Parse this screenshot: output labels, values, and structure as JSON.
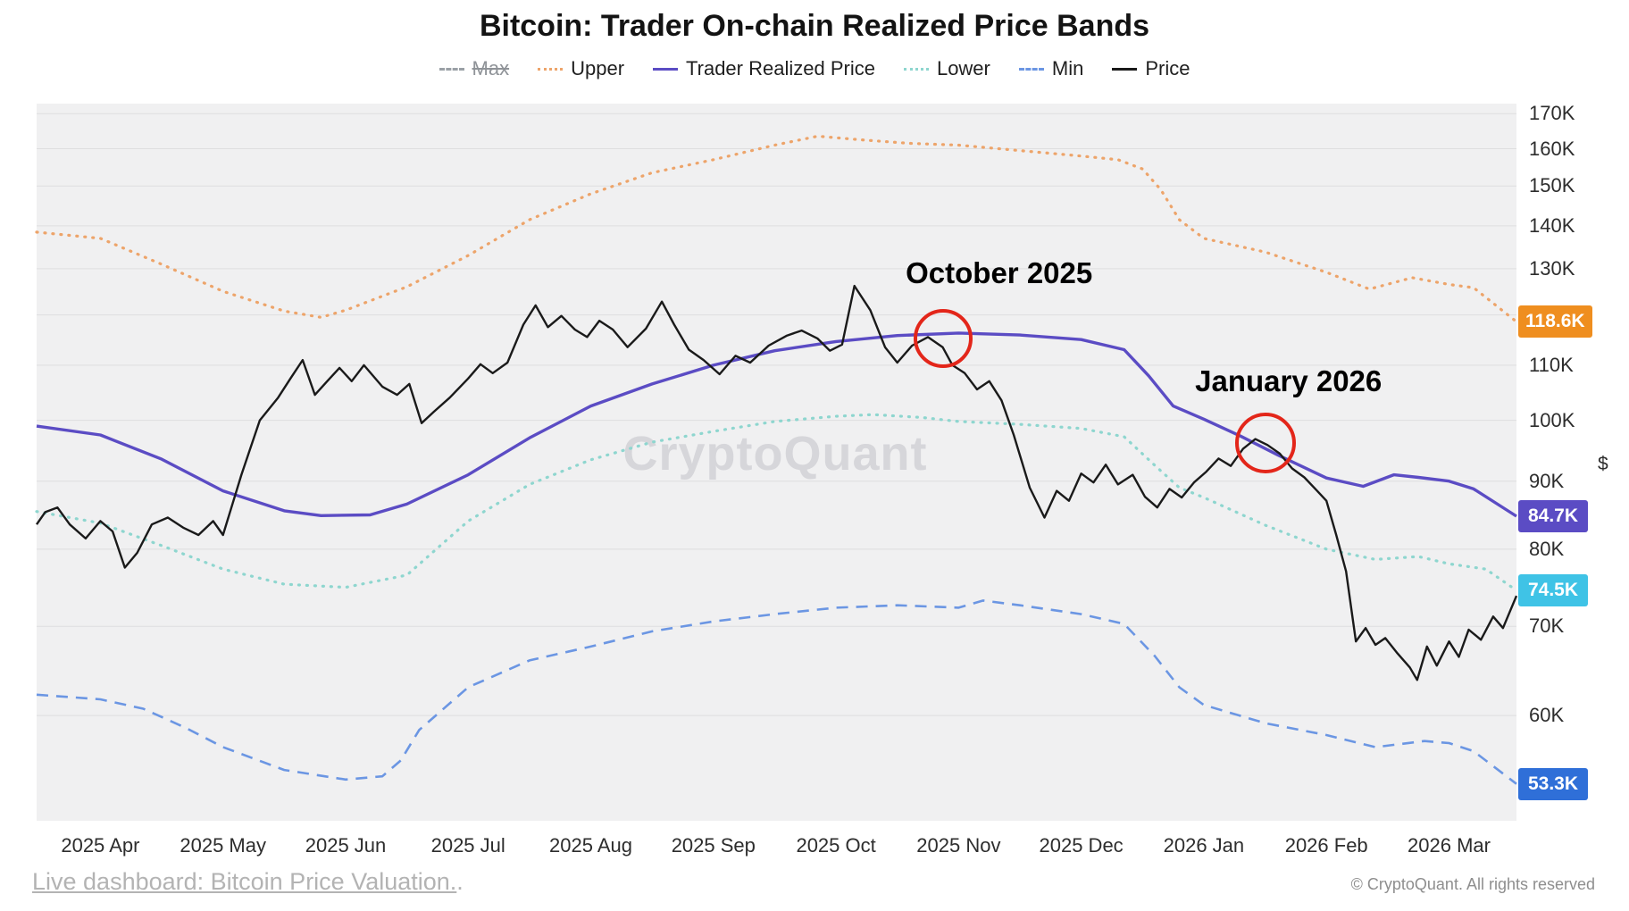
{
  "title": "Bitcoin: Trader On-chain Realized Price Bands",
  "watermark": "CryptoQuant",
  "legend": {
    "items": [
      {
        "label": "Max",
        "color": "#9aa0a6",
        "style": "dashed",
        "disabled": true
      },
      {
        "label": "Upper",
        "color": "#eda46a",
        "style": "dotted",
        "disabled": false
      },
      {
        "label": "Trader Realized Price",
        "color": "#5b4cc4",
        "style": "solid",
        "disabled": false
      },
      {
        "label": "Lower",
        "color": "#8ed6cf",
        "style": "dotted",
        "disabled": false
      },
      {
        "label": "Min",
        "color": "#6b96e3",
        "style": "dashed",
        "disabled": false
      },
      {
        "label": "Price",
        "color": "#1a1a1a",
        "style": "solid",
        "disabled": false
      }
    ]
  },
  "chart_data": {
    "type": "line",
    "title": "Bitcoin: Trader On-chain Realized Price Bands",
    "x_unit": "months (0 = 2025 Apr tick)",
    "y_unit": "USD thousands",
    "y_scale": "log",
    "grid": true,
    "legend_position": "top",
    "x_range": [
      -0.52,
      11.55
    ],
    "y_range": [
      50,
      173
    ],
    "y_axis_unit_label": "$",
    "x_ticks": [
      {
        "m": 0,
        "label": "2025 Apr"
      },
      {
        "m": 1,
        "label": "2025 May"
      },
      {
        "m": 2,
        "label": "2025 Jun"
      },
      {
        "m": 3,
        "label": "2025 Jul"
      },
      {
        "m": 4,
        "label": "2025 Aug"
      },
      {
        "m": 5,
        "label": "2025 Sep"
      },
      {
        "m": 6,
        "label": "2025 Oct"
      },
      {
        "m": 7,
        "label": "2025 Nov"
      },
      {
        "m": 8,
        "label": "2025 Dec"
      },
      {
        "m": 9,
        "label": "2026 Jan"
      },
      {
        "m": 10,
        "label": "2026 Feb"
      },
      {
        "m": 11,
        "label": "2026 Mar"
      }
    ],
    "y_ticks": [
      {
        "v": 170,
        "label": "170K"
      },
      {
        "v": 160,
        "label": "160K"
      },
      {
        "v": 150,
        "label": "150K"
      },
      {
        "v": 140,
        "label": "140K"
      },
      {
        "v": 130,
        "label": "130K"
      },
      {
        "v": 110,
        "label": "110K"
      },
      {
        "v": 100,
        "label": "100K"
      },
      {
        "v": 90,
        "label": "90K"
      },
      {
        "v": 80,
        "label": "80K"
      },
      {
        "v": 70,
        "label": "70K"
      },
      {
        "v": 60,
        "label": "60K"
      }
    ],
    "gridline_values": [
      170,
      160,
      150,
      140,
      130,
      120,
      110,
      100,
      90,
      80,
      70,
      60
    ],
    "series": [
      {
        "name": "Upper",
        "color": "#eda46a",
        "style": "dotted",
        "width": 3.2,
        "x": [
          -0.52,
          0,
          0.5,
          1,
          1.5,
          1.8,
          2,
          2.5,
          3,
          3.5,
          4,
          4.5,
          5,
          5.5,
          5.85,
          6.2,
          6.6,
          7,
          7.5,
          8,
          8.3,
          8.5,
          8.65,
          8.8,
          9,
          9.5,
          10,
          10.35,
          10.7,
          11,
          11.2,
          11.55
        ],
        "values": [
          138.5,
          137,
          131,
          125,
          120.8,
          119.5,
          121,
          126,
          133,
          141.5,
          148,
          153.5,
          157,
          161,
          163.5,
          162.5,
          161.5,
          161,
          159.5,
          158,
          157,
          154.5,
          149,
          141.5,
          137,
          133.8,
          129.2,
          125.5,
          128,
          126.5,
          125.8,
          118.6
        ]
      },
      {
        "name": "Trader Realized Price",
        "color": "#5b4cc4",
        "style": "solid",
        "width": 3.4,
        "x": [
          -0.52,
          0,
          0.5,
          1,
          1.5,
          1.8,
          2.2,
          2.5,
          3,
          3.5,
          4,
          4.5,
          5,
          5.5,
          6,
          6.5,
          7,
          7.5,
          8,
          8.35,
          8.55,
          8.75,
          9,
          9.3,
          9.6,
          10,
          10.3,
          10.55,
          10.75,
          11,
          11.2,
          11.55
        ],
        "values": [
          99,
          97.5,
          93.5,
          88.5,
          85.5,
          84.8,
          84.9,
          86.5,
          91,
          97,
          102.5,
          106.5,
          110,
          112.8,
          114.6,
          115.8,
          116.3,
          115.9,
          115,
          113,
          108,
          102.5,
          100.2,
          97.3,
          94.2,
          90.5,
          89.2,
          91,
          90.6,
          90,
          88.8,
          84.7
        ]
      },
      {
        "name": "Lower",
        "color": "#8ed6cf",
        "style": "dotted",
        "width": 3.2,
        "x": [
          -0.52,
          0,
          0.5,
          1,
          1.5,
          2,
          2.5,
          3,
          3.5,
          4,
          4.5,
          5,
          5.5,
          6,
          6.3,
          6.7,
          7,
          7.5,
          8,
          8.35,
          8.6,
          8.8,
          9,
          9.5,
          10,
          10.4,
          10.75,
          11,
          11.3,
          11.55
        ],
        "values": [
          85.4,
          83.7,
          80.5,
          77.3,
          75.3,
          74.9,
          76.5,
          84,
          89.5,
          93.4,
          96.3,
          98.1,
          99.8,
          100.7,
          101,
          100.5,
          99.8,
          99.3,
          98.6,
          97.2,
          92.5,
          89,
          87.5,
          83.4,
          80,
          78.6,
          79,
          78,
          77.3,
          74.5
        ]
      },
      {
        "name": "Min",
        "color": "#6b96e3",
        "style": "dashed",
        "width": 2.6,
        "x": [
          -0.52,
          0,
          0.35,
          0.7,
          1,
          1.5,
          2,
          2.3,
          2.45,
          2.6,
          3,
          3.5,
          4,
          4.5,
          5,
          5.5,
          6,
          6.5,
          7,
          7.2,
          7.5,
          8,
          8.35,
          8.6,
          8.8,
          9,
          9.5,
          10,
          10.4,
          10.8,
          11,
          11.2,
          11.55
        ],
        "values": [
          62.2,
          61.7,
          60.7,
          58.7,
          56.8,
          54.6,
          53.7,
          54,
          55.5,
          58.5,
          63,
          66,
          67.6,
          69.4,
          70.6,
          71.5,
          72.3,
          72.6,
          72.3,
          73.2,
          72.6,
          71.5,
          70.3,
          66.5,
          63,
          61.1,
          59.2,
          58,
          56.8,
          57.4,
          57.2,
          56.4,
          53.3
        ]
      },
      {
        "name": "Price",
        "color": "#1a1a1a",
        "style": "solid",
        "width": 2.4,
        "x": [
          -0.52,
          -0.45,
          -0.35,
          -0.25,
          -0.12,
          0,
          0.1,
          0.2,
          0.3,
          0.42,
          0.55,
          0.68,
          0.8,
          0.92,
          1.0,
          1.15,
          1.3,
          1.45,
          1.55,
          1.65,
          1.75,
          1.85,
          1.95,
          2.05,
          2.15,
          2.3,
          2.42,
          2.52,
          2.62,
          2.72,
          2.85,
          3.0,
          3.1,
          3.2,
          3.32,
          3.45,
          3.55,
          3.65,
          3.76,
          3.87,
          3.97,
          4.07,
          4.18,
          4.3,
          4.45,
          4.58,
          4.68,
          4.8,
          4.92,
          5.05,
          5.18,
          5.3,
          5.45,
          5.6,
          5.72,
          5.85,
          5.95,
          6.05,
          6.15,
          6.28,
          6.4,
          6.5,
          6.62,
          6.75,
          6.87,
          6.95,
          7.05,
          7.15,
          7.25,
          7.35,
          7.45,
          7.58,
          7.7,
          7.8,
          7.9,
          8.0,
          8.1,
          8.2,
          8.3,
          8.42,
          8.52,
          8.62,
          8.72,
          8.82,
          8.92,
          9.02,
          9.12,
          9.22,
          9.32,
          9.42,
          9.52,
          9.62,
          9.72,
          9.82,
          9.92,
          10.0,
          10.08,
          10.16,
          10.24,
          10.32,
          10.4,
          10.48,
          10.58,
          10.68,
          10.74,
          10.82,
          10.9,
          11.0,
          11.08,
          11.16,
          11.26,
          11.36,
          11.44,
          11.55
        ],
        "values": [
          83.5,
          85.3,
          86,
          83.5,
          81.5,
          84,
          82.5,
          77.5,
          79.5,
          83.5,
          84.5,
          83,
          82,
          84,
          82,
          91,
          100,
          104,
          107.5,
          111,
          104.5,
          107,
          109.5,
          107,
          110,
          106,
          104.5,
          106.5,
          99.5,
          101.5,
          104,
          107.5,
          110.2,
          108.5,
          110.5,
          118,
          122,
          117.5,
          119.8,
          117,
          115.5,
          118.8,
          117,
          113.5,
          117.2,
          122.8,
          118,
          113,
          111,
          108.3,
          111.8,
          110.5,
          113.8,
          115.8,
          116.8,
          115.2,
          112.8,
          114,
          126.2,
          121,
          113.5,
          110.5,
          113.8,
          115.5,
          113.5,
          110,
          108.5,
          105.5,
          107,
          103.5,
          97.5,
          89,
          84.5,
          88.5,
          87,
          91.2,
          89.8,
          92.6,
          89.5,
          91,
          87.6,
          86,
          88.8,
          87.5,
          89.8,
          91.5,
          93.6,
          92.4,
          95.2,
          96.8,
          95.8,
          94.4,
          92,
          90.6,
          88.6,
          87,
          82,
          77,
          68.2,
          69.8,
          67.8,
          68.6,
          66.8,
          65.2,
          63.8,
          67.6,
          65.4,
          68.2,
          66.4,
          69.6,
          68.4,
          71.2,
          69.8,
          73.8
        ]
      }
    ],
    "value_badges": [
      {
        "label": "118.6K",
        "value": 118.6,
        "color": "#ef8e1f"
      },
      {
        "label": "84.7K",
        "value": 84.7,
        "color": "#5b4cc4"
      },
      {
        "label": "74.5K",
        "value": 74.5,
        "color": "#3fc3e6"
      },
      {
        "label": "53.3K",
        "value": 53.3,
        "color": "#2f6fd8"
      }
    ],
    "annotations": [
      {
        "label": "October 2025",
        "circle_x": 6.87,
        "circle_value": 115.3,
        "circle_radius": 33,
        "text_x": 7.33,
        "text_value": 129
      },
      {
        "label": "January 2026",
        "circle_x": 9.5,
        "circle_value": 96.1,
        "circle_radius": 34,
        "text_x": 9.69,
        "text_value": 107
      }
    ]
  },
  "footer": {
    "link_text": "Live dashboard: Bitcoin Price Valuation.",
    "link_suffix": ".",
    "copyright": "© CryptoQuant. All rights reserved"
  }
}
